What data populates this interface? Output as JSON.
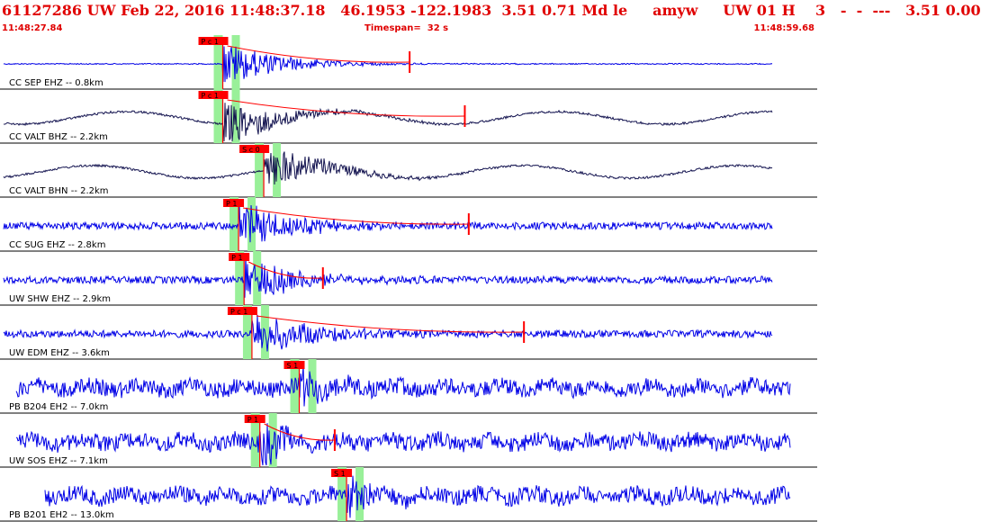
{
  "header": {
    "event_line": "61127286 UW Feb 22, 2016 11:48:37.18   46.1953 -122.1983  3.51 0.71 Md le     amyw     UW 01 H    3   -  -  ---   3.51 0.00",
    "start_time": "11:48:27.84",
    "timespan_label": "Timespan=  32 s",
    "end_time": "11:48:59.68"
  },
  "colors": {
    "header_text": "#e00000",
    "trace_blue": "#0000e6",
    "trace_navy": "#141450",
    "pick_red": "#ff0000",
    "window_green": "#99f099",
    "separator": "#000000"
  },
  "traces": [
    {
      "label": "CC SEP EHZ -- 0.8km",
      "color": "trace_blue",
      "amp": "low",
      "picks": [
        {
          "label": "P c 1",
          "t": 0.278
        }
      ],
      "coda_end": 0.515
    },
    {
      "label": "CC VALT BHZ -- 2.2km",
      "color": "trace_navy",
      "amp": "wave",
      "picks": [
        {
          "label": "P c 1",
          "t": 0.278
        }
      ],
      "coda_end": 0.585
    },
    {
      "label": "CC VALT BHN -- 2.2km",
      "color": "trace_navy",
      "amp": "wave",
      "picks": [
        {
          "label": "S c 0",
          "t": 0.33
        }
      ],
      "coda_end": null
    },
    {
      "label": "CC SUG EHZ -- 2.8km",
      "color": "trace_blue",
      "amp": "mid",
      "picks": [
        {
          "label": "P 1",
          "t": 0.298
        }
      ],
      "coda_end": 0.59
    },
    {
      "label": "UW SHW EHZ -- 2.9km",
      "color": "trace_blue",
      "amp": "mid",
      "picks": [
        {
          "label": "P 1",
          "t": 0.305
        }
      ],
      "coda_end": 0.405
    },
    {
      "label": "UW EDM EHZ -- 3.6km",
      "color": "trace_blue",
      "amp": "mid",
      "picks": [
        {
          "label": "P c 1",
          "t": 0.315
        }
      ],
      "coda_end": 0.66
    },
    {
      "label": "PB B204 EH2 -- 7.0km",
      "color": "trace_blue",
      "amp": "high",
      "picks": [
        {
          "label": "S 1",
          "t": 0.375
        }
      ],
      "coda_end": null
    },
    {
      "label": "UW SOS EHZ -- 7.1km",
      "color": "trace_blue",
      "amp": "high",
      "picks": [
        {
          "label": "P 1",
          "t": 0.325
        }
      ],
      "coda_end": 0.42
    },
    {
      "label": "PB B201 EH2 -- 13.0km",
      "color": "trace_blue",
      "amp": "high",
      "picks": [
        {
          "label": "S 1",
          "t": 0.435
        }
      ],
      "coda_end": null
    }
  ]
}
